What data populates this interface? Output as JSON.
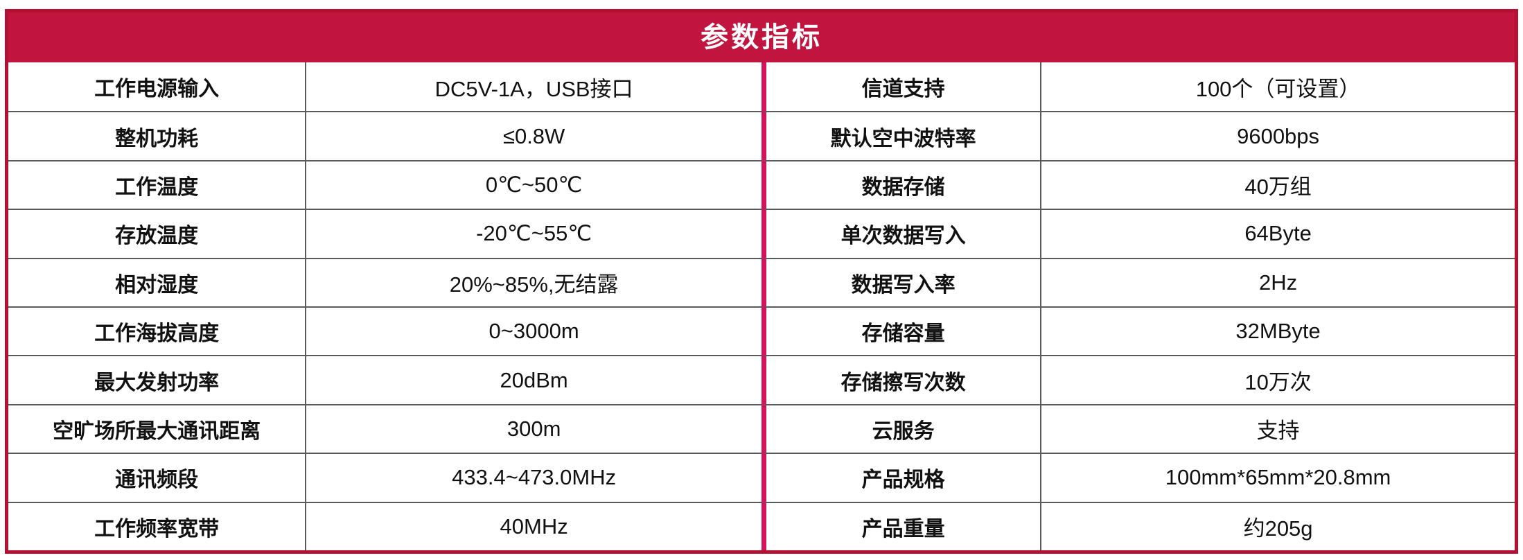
{
  "header": {
    "title": "参数指标"
  },
  "colors": {
    "header_bg": "#c1153f",
    "outer_border": "#b50f31",
    "middle_divider": "#d4135c",
    "grid_line": "#5a5a5a",
    "header_text": "#ffffff",
    "body_text": "#111111"
  },
  "table": {
    "rows": [
      {
        "left_label": "工作电源输入",
        "left_value": "DC5V-1A，USB接口",
        "right_label": "信道支持",
        "right_value": "100个（可设置）"
      },
      {
        "left_label": "整机功耗",
        "left_value": "≤0.8W",
        "right_label": "默认空中波特率",
        "right_value": "9600bps"
      },
      {
        "left_label": "工作温度",
        "left_value": "0℃~50℃",
        "right_label": "数据存储",
        "right_value": "40万组"
      },
      {
        "left_label": "存放温度",
        "left_value": "-20℃~55℃",
        "right_label": "单次数据写入",
        "right_value": "64Byte"
      },
      {
        "left_label": "相对湿度",
        "left_value": "20%~85%,无结露",
        "right_label": "数据写入率",
        "right_value": "2Hz"
      },
      {
        "left_label": "工作海拔高度",
        "left_value": "0~3000m",
        "right_label": "存储容量",
        "right_value": "32MByte"
      },
      {
        "left_label": "最大发射功率",
        "left_value": "20dBm",
        "right_label": "存储擦写次数",
        "right_value": "10万次"
      },
      {
        "left_label": "空旷场所最大通讯距离",
        "left_value": "300m",
        "right_label": "云服务",
        "right_value": "支持"
      },
      {
        "left_label": "通讯频段",
        "left_value": "433.4~473.0MHz",
        "right_label": "产品规格",
        "right_value": "100mm*65mm*20.8mm"
      },
      {
        "left_label": "工作频率宽带",
        "left_value": "40MHz",
        "right_label": "产品重量",
        "right_value": "约205g"
      }
    ]
  }
}
